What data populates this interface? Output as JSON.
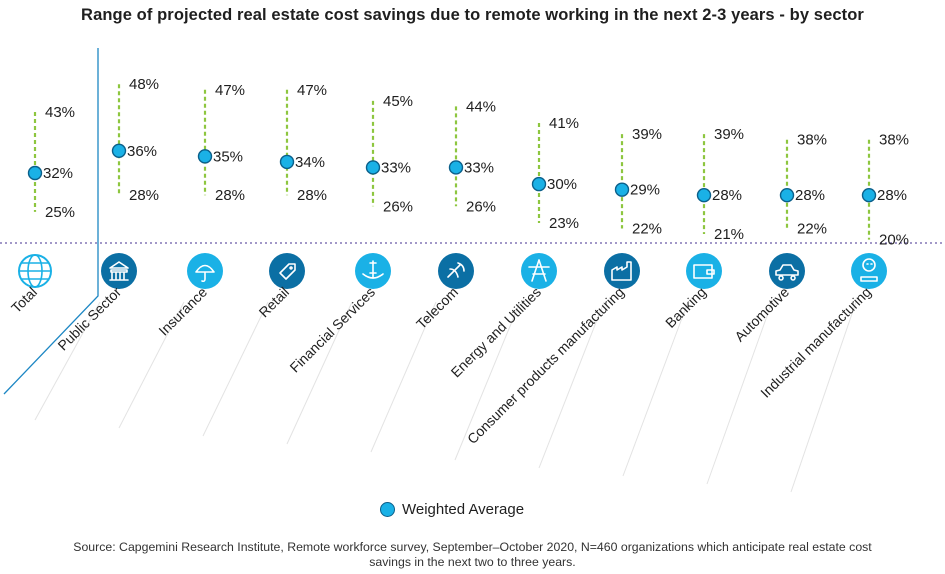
{
  "chart_data": {
    "type": "range",
    "title": "Range of projected real estate cost savings due to remote working in the next 2-3 years - by sector",
    "categories": [
      "Total",
      "Public Sector",
      "Insurance",
      "Retail",
      "Financial Services",
      "Telecom",
      "Energy and Utilities",
      "Consumer products manufacturing",
      "Banking",
      "Automotive",
      "Industrial manufacturing"
    ],
    "icons": [
      "globe-icon",
      "bank-building-icon",
      "umbrella-icon",
      "price-tag-icon",
      "dollar-hands-icon",
      "satellite-dish-icon",
      "power-tower-icon",
      "factory-icon",
      "wallet-icon",
      "car-icon",
      "gear-robot-icon"
    ],
    "max": [
      43,
      48,
      47,
      47,
      45,
      44,
      41,
      39,
      39,
      38,
      38
    ],
    "weighted_average": [
      32,
      36,
      35,
      34,
      33,
      33,
      30,
      29,
      28,
      28,
      28
    ],
    "min": [
      25,
      28,
      28,
      28,
      26,
      26,
      23,
      22,
      21,
      22,
      20
    ],
    "value_suffix": "%",
    "legend": [
      "Weighted Average"
    ],
    "colors": {
      "range_line": "#8dc63f",
      "average_marker": "#1ab1e6",
      "average_marker_border": "#0b5f8a",
      "icon_circle_light": "#1ab1e6",
      "icon_circle_dark": "#0b6fa4",
      "separator": "#6a5aa8",
      "total_divider": "#1d87c4"
    }
  },
  "source": {
    "line1": "Source: Capgemini Research Institute, Remote workforce survey, September–October 2020, N=460 organizations which anticipate real estate cost",
    "line2": "savings in the next two to three years."
  }
}
